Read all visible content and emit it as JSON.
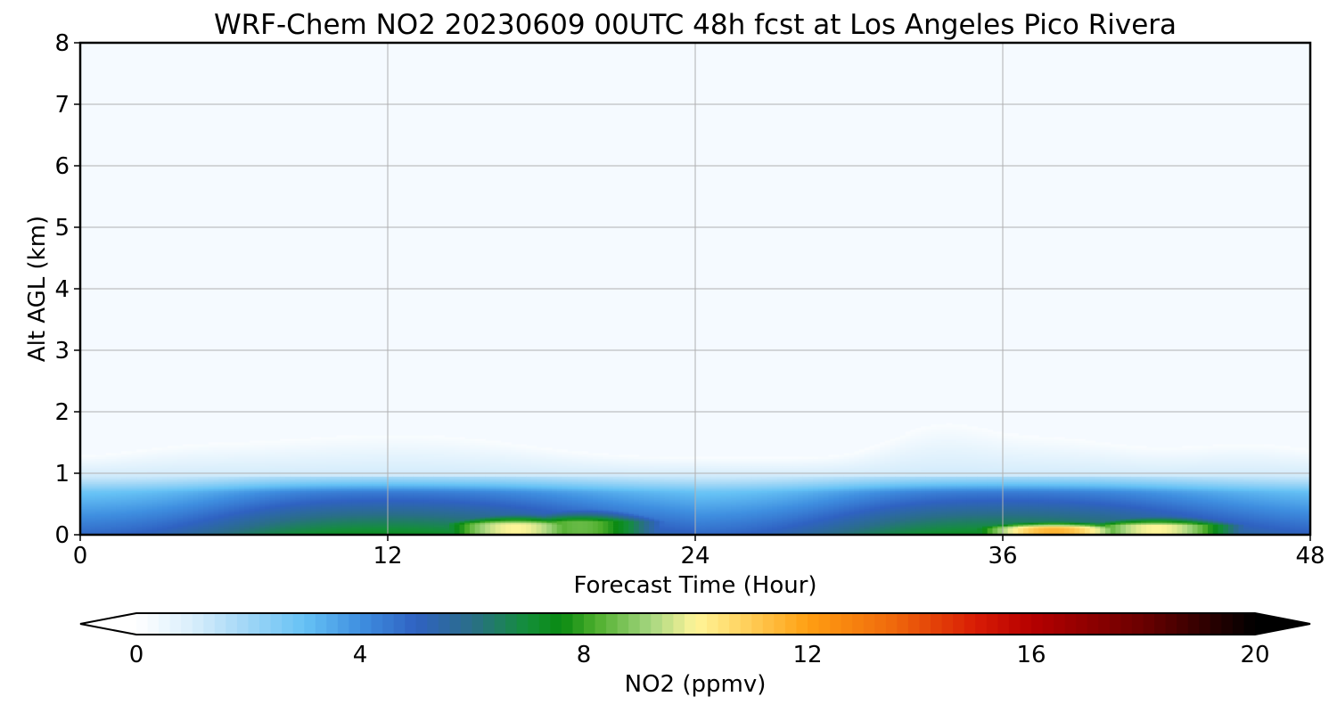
{
  "chart_data": {
    "type": "heatmap",
    "title": "WRF-Chem NO2  20230609 00UTC 48h fcst at Los Angeles Pico Rivera",
    "xlabel": "Forecast Time (Hour)",
    "ylabel": "Alt AGL (km)",
    "xlim": [
      0,
      48
    ],
    "ylim": [
      0,
      8
    ],
    "x_ticks": [
      "0",
      "12",
      "24",
      "36",
      "48"
    ],
    "y_ticks": [
      "0",
      "1",
      "2",
      "3",
      "4",
      "5",
      "6",
      "7",
      "8"
    ],
    "grid": true,
    "colorbar": {
      "label": "NO2  (ppmv)",
      "range": [
        0,
        20
      ],
      "extend": "both",
      "ticks": [
        "0",
        "4",
        "8",
        "12",
        "16",
        "20"
      ]
    },
    "plumes": [
      {
        "hour": 17,
        "height_km": 0.45,
        "peak": 10.0
      },
      {
        "hour": 19.5,
        "height_km": 0.55,
        "peak": 8.5
      },
      {
        "hour": 38,
        "height_km": 0.3,
        "peak": 11.5
      },
      {
        "hour": 42,
        "height_km": 0.4,
        "peak": 10.0
      }
    ]
  }
}
